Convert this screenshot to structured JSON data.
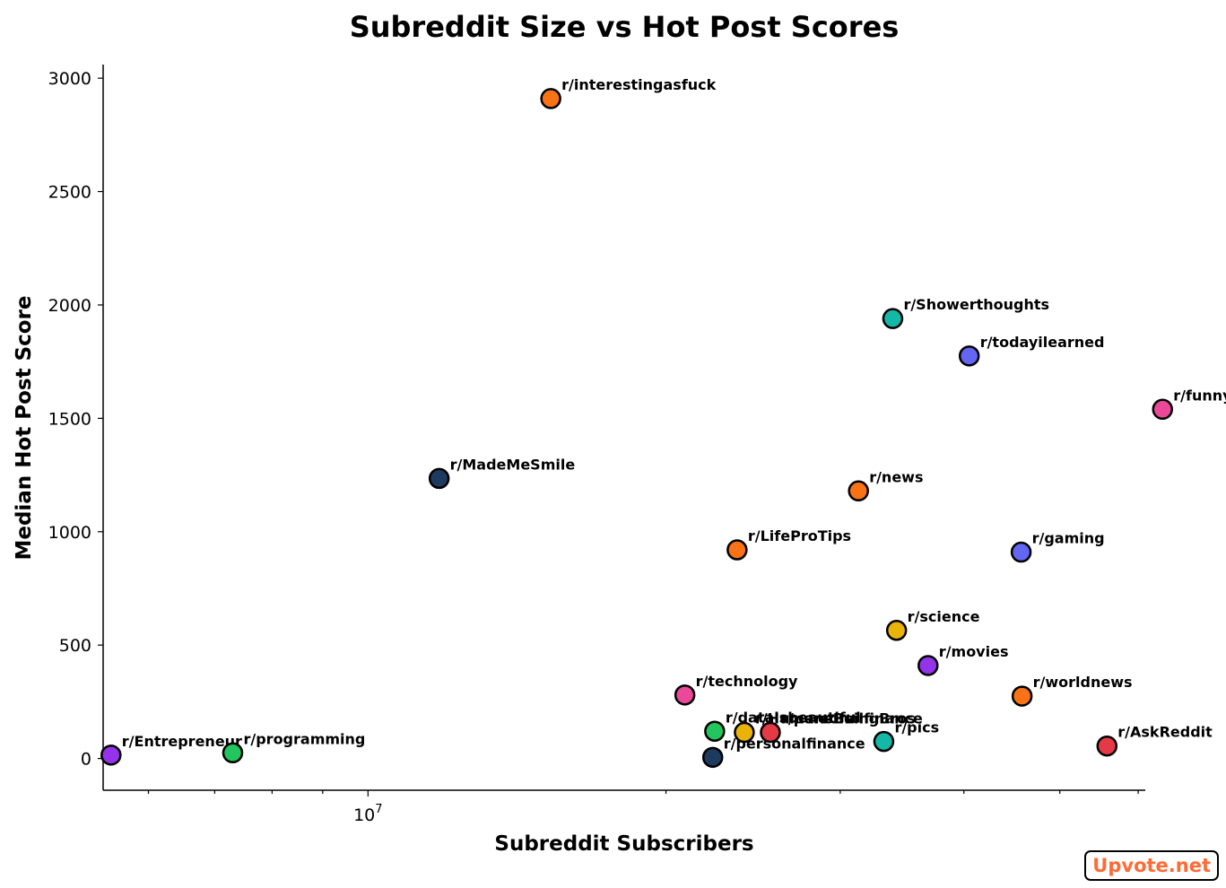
{
  "chart_data": {
    "type": "scatter",
    "title": "Subreddit Size vs Hot Post Scores",
    "xlabel": "Subreddit Subscribers",
    "ylabel": "Median Hot Post Score",
    "xscale": "log",
    "xlim": [
      5400000,
      61000000
    ],
    "ylim": [
      -140,
      3060
    ],
    "y_ticks": [
      0,
      500,
      1000,
      1500,
      2000,
      2500,
      3000
    ],
    "x_major_ticks": [
      {
        "value": 10000000,
        "base": "10",
        "exp": "7"
      }
    ],
    "x_minor_ticks": [
      6000000,
      7000000,
      8000000,
      9000000,
      20000000,
      30000000,
      40000000,
      50000000,
      60000000
    ],
    "grid": false,
    "points": [
      {
        "label": "r/interestingasfuck",
        "x": 15300000,
        "y": 2910,
        "color": "#f97316"
      },
      {
        "label": "r/Showerthoughts",
        "x": 33900000,
        "y": 1940,
        "color": "#14b8a6"
      },
      {
        "label": "r/todayilearned",
        "x": 40500000,
        "y": 1775,
        "color": "#6366f1"
      },
      {
        "label": "r/funny",
        "x": 63500000,
        "y": 1540,
        "color": "#ec4899"
      },
      {
        "label": "r/MadeMeSmile",
        "x": 11800000,
        "y": 1235,
        "color": "#1e3a5f"
      },
      {
        "label": "r/news",
        "x": 31300000,
        "y": 1180,
        "color": "#f97316"
      },
      {
        "label": "r/LifeProTips",
        "x": 23600000,
        "y": 920,
        "color": "#f97316"
      },
      {
        "label": "r/gaming",
        "x": 45700000,
        "y": 910,
        "color": "#6366f1"
      },
      {
        "label": "r/science",
        "x": 34200000,
        "y": 565,
        "color": "#eab308"
      },
      {
        "label": "r/movies",
        "x": 36800000,
        "y": 410,
        "color": "#9333ea"
      },
      {
        "label": "r/technology",
        "x": 20900000,
        "y": 280,
        "color": "#ec4899"
      },
      {
        "label": "r/worldnews",
        "x": 45800000,
        "y": 275,
        "color": "#f97316"
      },
      {
        "label": "r/dataisbeautiful",
        "x": 22400000,
        "y": 120,
        "color": "#22c55e"
      },
      {
        "label": "r/HumansBeingBros",
        "x": 24000000,
        "y": 115,
        "color": "#eab308"
      },
      {
        "label": "r/personalfinance",
        "x": 25500000,
        "y": 115,
        "color": "#e63946"
      },
      {
        "label": "r/pics",
        "x": 33200000,
        "y": 75,
        "color": "#14b8a6"
      },
      {
        "label": "r/AskReddit",
        "x": 55800000,
        "y": 55,
        "color": "#e63946"
      },
      {
        "label": "r/Entrepreneur",
        "x": 5500000,
        "y": 15,
        "color": "#9333ea"
      },
      {
        "label": "r/programming",
        "x": 7300000,
        "y": 25,
        "color": "#22c55e"
      },
      {
        "label": "r/personalfinance",
        "x": 22300000,
        "y": 5,
        "color": "#1e3a5f"
      }
    ]
  },
  "watermark": "Upvote.net"
}
